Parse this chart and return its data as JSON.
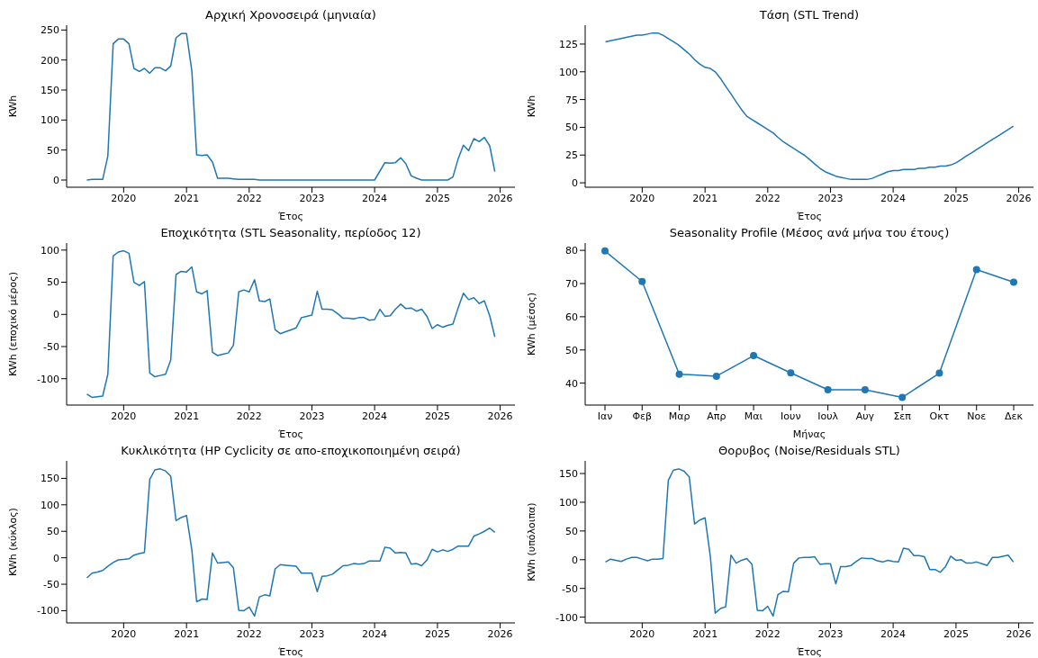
{
  "chart_data": [
    {
      "type": "line",
      "title": "Αρχική Χρονοσειρά (μηνιαία)",
      "xlabel": "Έτος",
      "ylabel": "KWh",
      "color": "#1f77b4",
      "xlim": [
        "2019-02-03",
        "2026-03-28"
      ],
      "xticks": [
        "2020",
        "2021",
        "2022",
        "2023",
        "2024",
        "2025",
        "2026"
      ],
      "ylim": [
        -12,
        258
      ],
      "yticks": [
        0,
        50,
        100,
        150,
        200,
        250
      ],
      "x": [
        "2019-06",
        "2019-07",
        "2019-08",
        "2019-09",
        "2019-10",
        "2019-11",
        "2019-12",
        "2020-01",
        "2020-02",
        "2020-03",
        "2020-04",
        "2020-05",
        "2020-06",
        "2020-07",
        "2020-08",
        "2020-09",
        "2020-10",
        "2020-11",
        "2020-12",
        "2021-01",
        "2021-02",
        "2021-03",
        "2021-04",
        "2021-05",
        "2021-06",
        "2021-07",
        "2021-08",
        "2021-09",
        "2021-10",
        "2021-11",
        "2021-12",
        "2022-01",
        "2022-02",
        "2022-03",
        "2022-04",
        "2022-05",
        "2022-06",
        "2022-07",
        "2022-08",
        "2022-09",
        "2022-10",
        "2022-11",
        "2022-12",
        "2023-01",
        "2023-02",
        "2023-03",
        "2023-04",
        "2023-05",
        "2023-06",
        "2023-07",
        "2023-08",
        "2023-09",
        "2023-10",
        "2023-11",
        "2023-12",
        "2024-01",
        "2024-02",
        "2024-03",
        "2024-04",
        "2024-05",
        "2024-06",
        "2024-07",
        "2024-08",
        "2024-09",
        "2024-10",
        "2024-11",
        "2024-12",
        "2025-01",
        "2025-02",
        "2025-03",
        "2025-04",
        "2025-05",
        "2025-06",
        "2025-07",
        "2025-08",
        "2025-09",
        "2025-10",
        "2025-11",
        "2025-12"
      ],
      "values": [
        0,
        1,
        1,
        1,
        40,
        227,
        235,
        235,
        227,
        186,
        181,
        186,
        178,
        187,
        187,
        182,
        190,
        237,
        244,
        244,
        182,
        42,
        41,
        42,
        30,
        3,
        3,
        3,
        2,
        1,
        1,
        1,
        1,
        0,
        0,
        0,
        0,
        0,
        0,
        0,
        0,
        0,
        0,
        0,
        0,
        0,
        0,
        0,
        0,
        0,
        0,
        0,
        0,
        0,
        0,
        0,
        15,
        29,
        28,
        29,
        37,
        27,
        7,
        3,
        0,
        0,
        0,
        0,
        0,
        0,
        5,
        35,
        58,
        49,
        69,
        64,
        71,
        57,
        14
      ]
    },
    {
      "type": "line",
      "title": "Τάση (STL Trend)",
      "xlabel": "Έτος",
      "ylabel": "KWh",
      "color": "#1f77b4",
      "xlim": [
        "2019-02-03",
        "2026-03-28"
      ],
      "xticks": [
        "2020",
        "2021",
        "2022",
        "2023",
        "2024",
        "2025",
        "2026"
      ],
      "ylim": [
        -4,
        142
      ],
      "yticks": [
        0,
        25,
        50,
        75,
        100,
        125
      ],
      "x": [
        "2019-06",
        "2019-07",
        "2019-08",
        "2019-09",
        "2019-10",
        "2019-11",
        "2019-12",
        "2020-01",
        "2020-02",
        "2020-03",
        "2020-04",
        "2020-05",
        "2020-06",
        "2020-07",
        "2020-08",
        "2020-09",
        "2020-10",
        "2020-11",
        "2020-12",
        "2021-01",
        "2021-02",
        "2021-03",
        "2021-04",
        "2021-05",
        "2021-06",
        "2021-07",
        "2021-08",
        "2021-09",
        "2021-10",
        "2021-11",
        "2021-12",
        "2022-01",
        "2022-02",
        "2022-03",
        "2022-04",
        "2022-05",
        "2022-06",
        "2022-07",
        "2022-08",
        "2022-09",
        "2022-10",
        "2022-11",
        "2022-12",
        "2023-01",
        "2023-02",
        "2023-03",
        "2023-04",
        "2023-05",
        "2023-06",
        "2023-07",
        "2023-08",
        "2023-09",
        "2023-10",
        "2023-11",
        "2023-12",
        "2024-01",
        "2024-02",
        "2024-03",
        "2024-04",
        "2024-05",
        "2024-06",
        "2024-07",
        "2024-08",
        "2024-09",
        "2024-10",
        "2024-11",
        "2024-12",
        "2025-01",
        "2025-02",
        "2025-03",
        "2025-04",
        "2025-05",
        "2025-06",
        "2025-07",
        "2025-08",
        "2025-09",
        "2025-10",
        "2025-11",
        "2025-12"
      ],
      "values": [
        127,
        128,
        129,
        130,
        131,
        132,
        133,
        133,
        134,
        135,
        135,
        133,
        130,
        127,
        124,
        120,
        116,
        111,
        107,
        104,
        103,
        100,
        94,
        87,
        80,
        73,
        66,
        60,
        57,
        54,
        51,
        48,
        45,
        41,
        37,
        34,
        31,
        28,
        25,
        21,
        17,
        13,
        10,
        8,
        6,
        5,
        4,
        3,
        3,
        3,
        3,
        4,
        6,
        8,
        10,
        11,
        11,
        12,
        12,
        12,
        13,
        13,
        14,
        14,
        15,
        15,
        16,
        18,
        21,
        24,
        27,
        30,
        33,
        36,
        39,
        42,
        45,
        48,
        51
      ]
    },
    {
      "type": "line",
      "title": "Εποχικότητα (STL Seasonality, περίοδος 12)",
      "xlabel": "Έτος",
      "ylabel": "KWh (εποχικό μέρος)",
      "color": "#1f77b4",
      "xlim": [
        "2019-02-03",
        "2026-03-28"
      ],
      "xticks": [
        "2020",
        "2021",
        "2022",
        "2023",
        "2024",
        "2025",
        "2026"
      ],
      "ylim": [
        -141,
        111
      ],
      "yticks": [
        -100,
        -50,
        0,
        50,
        100
      ],
      "x": [
        "2019-06",
        "2019-07",
        "2019-08",
        "2019-09",
        "2019-10",
        "2019-11",
        "2019-12",
        "2020-01",
        "2020-02",
        "2020-03",
        "2020-04",
        "2020-05",
        "2020-06",
        "2020-07",
        "2020-08",
        "2020-09",
        "2020-10",
        "2020-11",
        "2020-12",
        "2021-01",
        "2021-02",
        "2021-03",
        "2021-04",
        "2021-05",
        "2021-06",
        "2021-07",
        "2021-08",
        "2021-09",
        "2021-10",
        "2021-11",
        "2021-12",
        "2022-01",
        "2022-02",
        "2022-03",
        "2022-04",
        "2022-05",
        "2022-06",
        "2022-07",
        "2022-08",
        "2022-09",
        "2022-10",
        "2022-11",
        "2022-12",
        "2023-01",
        "2023-02",
        "2023-03",
        "2023-04",
        "2023-05",
        "2023-06",
        "2023-07",
        "2023-08",
        "2023-09",
        "2023-10",
        "2023-11",
        "2023-12",
        "2024-01",
        "2024-02",
        "2024-03",
        "2024-04",
        "2024-05",
        "2024-06",
        "2024-07",
        "2024-08",
        "2024-09",
        "2024-10",
        "2024-11",
        "2024-12",
        "2025-01",
        "2025-02",
        "2025-03",
        "2025-04",
        "2025-05",
        "2025-06",
        "2025-07",
        "2025-08",
        "2025-09",
        "2025-10",
        "2025-11",
        "2025-12"
      ],
      "values": [
        -124,
        -129,
        -128,
        -127,
        -93,
        91,
        97,
        99,
        95,
        50,
        45,
        51,
        -91,
        -97,
        -95,
        -93,
        -71,
        62,
        67,
        66,
        74,
        35,
        32,
        37,
        -59,
        -64,
        -62,
        -60,
        -48,
        35,
        38,
        35,
        54,
        21,
        20,
        24,
        -24,
        -30,
        -27,
        -24,
        -21,
        -5,
        -3,
        -1,
        36,
        8,
        8,
        7,
        1,
        -6,
        -6,
        -7,
        -5,
        -5,
        -9,
        -8,
        8,
        -3,
        -2,
        8,
        16,
        9,
        10,
        5,
        8,
        -3,
        -22,
        -16,
        -20,
        -17,
        -15,
        10,
        33,
        23,
        26,
        17,
        21,
        -2,
        -35
      ]
    },
    {
      "type": "line",
      "title": "Seasonality Profile (Μέσος ανά μήνα του έτους)",
      "xlabel": "Μήνας",
      "ylabel": "KWh (μέσος)",
      "color": "#1f77b4",
      "marker": "circle",
      "ylim": [
        33.4,
        82.2
      ],
      "yticks": [
        40,
        50,
        60,
        70,
        80
      ],
      "categories": [
        "Ιαν",
        "Φεβ",
        "Μαρ",
        "Απρ",
        "Μαι",
        "Ιουν",
        "Ιουλ",
        "Αυγ",
        "Σεπ",
        "Οκτ",
        "Νοε",
        "Δεκ"
      ],
      "values": [
        79.8,
        70.6,
        42.7,
        42.1,
        48.3,
        43.1,
        38.0,
        38.0,
        35.7,
        43.0,
        74.2,
        70.4
      ]
    },
    {
      "type": "line",
      "title": "Κυκλικότητα (HP Cyclicity σε απο-εποχικοποιημένη σειρά)",
      "xlabel": "Έτος",
      "ylabel": "KWh (κύκλος)",
      "color": "#1f77b4",
      "xlim": [
        "2019-02-03",
        "2026-03-28"
      ],
      "xticks": [
        "2020",
        "2021",
        "2022",
        "2023",
        "2024",
        "2025",
        "2026"
      ],
      "ylim": [
        -123,
        183
      ],
      "yticks": [
        -100,
        -50,
        0,
        50,
        100,
        150
      ],
      "x": [
        "2019-06",
        "2019-07",
        "2019-08",
        "2019-09",
        "2019-10",
        "2019-11",
        "2019-12",
        "2020-01",
        "2020-02",
        "2020-03",
        "2020-04",
        "2020-05",
        "2020-06",
        "2020-07",
        "2020-08",
        "2020-09",
        "2020-10",
        "2020-11",
        "2020-12",
        "2021-01",
        "2021-02",
        "2021-03",
        "2021-04",
        "2021-05",
        "2021-06",
        "2021-07",
        "2021-08",
        "2021-09",
        "2021-10",
        "2021-11",
        "2021-12",
        "2022-01",
        "2022-02",
        "2022-03",
        "2022-04",
        "2022-05",
        "2022-06",
        "2022-07",
        "2022-08",
        "2022-09",
        "2022-10",
        "2022-11",
        "2022-12",
        "2023-01",
        "2023-02",
        "2023-03",
        "2023-04",
        "2023-05",
        "2023-06",
        "2023-07",
        "2023-08",
        "2023-09",
        "2023-10",
        "2023-11",
        "2023-12",
        "2024-01",
        "2024-02",
        "2024-03",
        "2024-04",
        "2024-05",
        "2024-06",
        "2024-07",
        "2024-08",
        "2024-09",
        "2024-10",
        "2024-11",
        "2024-12",
        "2025-01",
        "2025-02",
        "2025-03",
        "2025-04",
        "2025-05",
        "2025-06",
        "2025-07",
        "2025-08",
        "2025-09",
        "2025-10",
        "2025-11",
        "2025-12"
      ],
      "values": [
        -38,
        -29,
        -27,
        -24,
        -16,
        -9,
        -4,
        -3,
        -2,
        5,
        8,
        10,
        148,
        166,
        168,
        164,
        154,
        70,
        76,
        80,
        15,
        -83,
        -78,
        -79,
        9,
        -10,
        -9,
        -8,
        -19,
        -99,
        -100,
        -93,
        -110,
        -74,
        -70,
        -72,
        -21,
        -13,
        -14,
        -15,
        -16,
        -29,
        -29,
        -29,
        -64,
        -35,
        -34,
        -31,
        -23,
        -15,
        -14,
        -11,
        -12,
        -11,
        -6,
        -6,
        -6,
        20,
        18,
        9,
        10,
        9,
        -12,
        -11,
        -15,
        -4,
        16,
        11,
        15,
        12,
        16,
        22,
        22,
        22,
        41,
        45,
        50,
        56,
        48
      ]
    },
    {
      "type": "line",
      "title": "Θορυβος (Noise/Residuals STL)",
      "xlabel": "Έτος",
      "ylabel": "KWh (υπόλοιπα)",
      "color": "#1f77b4",
      "xlim": [
        "2019-02-03",
        "2026-03-28"
      ],
      "xticks": [
        "2020",
        "2021",
        "2022",
        "2023",
        "2024",
        "2025",
        "2026"
      ],
      "ylim": [
        -110,
        172
      ],
      "yticks": [
        -100,
        -50,
        0,
        50,
        100,
        150
      ],
      "x": [
        "2019-06",
        "2019-07",
        "2019-08",
        "2019-09",
        "2019-10",
        "2019-11",
        "2019-12",
        "2020-01",
        "2020-02",
        "2020-03",
        "2020-04",
        "2020-05",
        "2020-06",
        "2020-07",
        "2020-08",
        "2020-09",
        "2020-10",
        "2020-11",
        "2020-12",
        "2021-01",
        "2021-02",
        "2021-03",
        "2021-04",
        "2021-05",
        "2021-06",
        "2021-07",
        "2021-08",
        "2021-09",
        "2021-10",
        "2021-11",
        "2021-12",
        "2022-01",
        "2022-02",
        "2022-03",
        "2022-04",
        "2022-05",
        "2022-06",
        "2022-07",
        "2022-08",
        "2022-09",
        "2022-10",
        "2022-11",
        "2022-12",
        "2023-01",
        "2023-02",
        "2023-03",
        "2023-04",
        "2023-05",
        "2023-06",
        "2023-07",
        "2023-08",
        "2023-09",
        "2023-10",
        "2023-11",
        "2023-12",
        "2024-01",
        "2024-02",
        "2024-03",
        "2024-04",
        "2024-05",
        "2024-06",
        "2024-07",
        "2024-08",
        "2024-09",
        "2024-10",
        "2024-11",
        "2024-12",
        "2025-01",
        "2025-02",
        "2025-03",
        "2025-04",
        "2025-05",
        "2025-06",
        "2025-07",
        "2025-08",
        "2025-09",
        "2025-10",
        "2025-11",
        "2025-12"
      ],
      "values": [
        -4,
        1,
        -1,
        -3,
        1,
        4,
        4,
        1,
        -2,
        1,
        1,
        2,
        138,
        156,
        158,
        154,
        144,
        62,
        69,
        73,
        5,
        -93,
        -85,
        -82,
        8,
        -6,
        -1,
        2,
        -8,
        -88,
        -89,
        -81,
        -98,
        -61,
        -55,
        -56,
        -6,
        3,
        4,
        4,
        5,
        -8,
        -7,
        -7,
        -42,
        -12,
        -12,
        -10,
        -3,
        3,
        2,
        2,
        -2,
        -4,
        -1,
        -3,
        -4,
        20,
        18,
        7,
        7,
        5,
        -17,
        -17,
        -22,
        -12,
        6,
        -1,
        0,
        -6,
        -6,
        -4,
        -7,
        -10,
        4,
        4,
        6,
        8,
        -4
      ]
    }
  ]
}
